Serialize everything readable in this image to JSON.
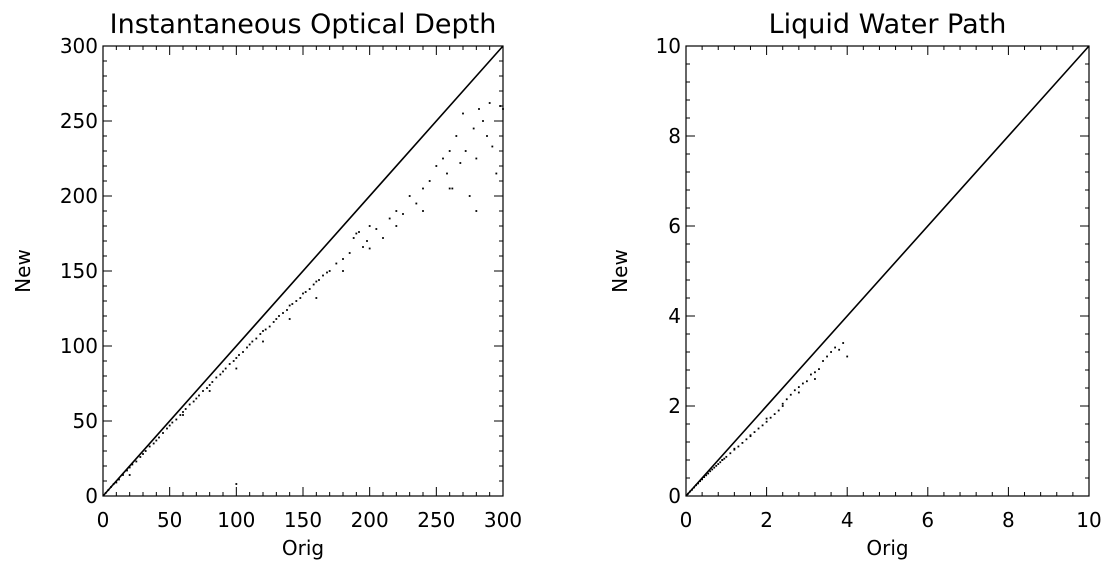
{
  "chart_data": [
    {
      "type": "scatter",
      "title": "Instantaneous Optical Depth",
      "xlabel": "Orig",
      "ylabel": "New",
      "xlim": [
        0,
        300
      ],
      "ylim": [
        0,
        300
      ],
      "xticks": [
        0,
        50,
        100,
        150,
        200,
        250,
        300
      ],
      "yticks": [
        0,
        50,
        100,
        150,
        200,
        250,
        300
      ],
      "xtick_labels": [
        "0",
        "50",
        "100",
        "150",
        "200",
        "250",
        "300"
      ],
      "ytick_labels": [
        "0",
        "50",
        "100",
        "150",
        "200",
        "250",
        "300"
      ],
      "reference_line": {
        "x": [
          0,
          300
        ],
        "y": [
          0,
          300
        ]
      },
      "point_color": "#000000",
      "grid": false,
      "series": [
        {
          "x": [
            2,
            4,
            6,
            8,
            10,
            12,
            15,
            18,
            20,
            22,
            25,
            28,
            30,
            32,
            35,
            38,
            40,
            42,
            45,
            48,
            50,
            52,
            55,
            58,
            60,
            62,
            65,
            68,
            70,
            72,
            75,
            78,
            80,
            82,
            85,
            88,
            90,
            92,
            95,
            98,
            100,
            102,
            105,
            108,
            110,
            112,
            115,
            118,
            120,
            122,
            125,
            128,
            130,
            132,
            135,
            138,
            140,
            142,
            145,
            148,
            150,
            152,
            155,
            158,
            160,
            162,
            165,
            168,
            170,
            175,
            180,
            185,
            188,
            190,
            192,
            195,
            198,
            200,
            205,
            210,
            215,
            220,
            225,
            230,
            235,
            240,
            245,
            250,
            255,
            258,
            260,
            262,
            265,
            268,
            270,
            272,
            275,
            278,
            280,
            282,
            285,
            288,
            290,
            292,
            295,
            298,
            300,
            60,
            80,
            100,
            120,
            140,
            160,
            180,
            200,
            220,
            240,
            260,
            280,
            100,
            20
          ],
          "y": [
            2,
            4,
            6,
            8,
            9,
            11,
            14,
            17,
            19,
            21,
            23,
            26,
            28,
            30,
            33,
            35,
            37,
            39,
            42,
            45,
            47,
            49,
            51,
            54,
            56,
            58,
            61,
            63,
            65,
            67,
            70,
            72,
            74,
            76,
            79,
            81,
            83,
            85,
            88,
            90,
            92,
            94,
            96,
            99,
            101,
            103,
            105,
            108,
            110,
            111,
            113,
            116,
            118,
            120,
            122,
            124,
            127,
            128,
            130,
            132,
            135,
            136,
            138,
            141,
            143,
            144,
            147,
            149,
            150,
            155,
            158,
            162,
            172,
            175,
            176,
            166,
            170,
            180,
            178,
            172,
            185,
            190,
            188,
            200,
            195,
            205,
            210,
            220,
            225,
            215,
            230,
            205,
            240,
            222,
            255,
            230,
            200,
            245,
            190,
            258,
            250,
            240,
            262,
            233,
            215,
            260,
            258,
            54,
            70,
            85,
            103,
            118,
            132,
            150,
            165,
            180,
            190,
            205,
            225,
            8,
            14
          ]
        }
      ]
    },
    {
      "type": "scatter",
      "title": "Liquid Water Path",
      "xlabel": "Orig",
      "ylabel": "New",
      "xlim": [
        0,
        10
      ],
      "ylim": [
        0,
        10
      ],
      "xticks": [
        0,
        2,
        4,
        6,
        8,
        10
      ],
      "yticks": [
        0,
        2,
        4,
        6,
        8,
        10
      ],
      "xtick_labels": [
        "0",
        "2",
        "4",
        "6",
        "8",
        "10"
      ],
      "ytick_labels": [
        "0",
        "2",
        "4",
        "6",
        "8",
        "10"
      ],
      "reference_line": {
        "x": [
          0,
          10
        ],
        "y": [
          0,
          10
        ]
      },
      "point_color": "#000000",
      "grid": false,
      "series": [
        {
          "x": [
            0.05,
            0.1,
            0.15,
            0.2,
            0.25,
            0.3,
            0.35,
            0.4,
            0.45,
            0.5,
            0.55,
            0.6,
            0.65,
            0.7,
            0.75,
            0.8,
            0.85,
            0.9,
            0.95,
            1.0,
            1.1,
            1.2,
            1.3,
            1.4,
            1.5,
            1.6,
            1.7,
            1.8,
            1.9,
            2.0,
            2.1,
            2.2,
            2.3,
            2.4,
            2.5,
            2.6,
            2.7,
            2.8,
            2.9,
            3.0,
            3.1,
            3.2,
            3.3,
            3.4,
            3.5,
            3.6,
            3.7,
            3.8,
            3.9,
            4.0,
            0.9,
            1.2,
            1.6,
            2.0,
            2.4,
            2.8,
            3.2
          ],
          "y": [
            0.05,
            0.1,
            0.14,
            0.19,
            0.24,
            0.28,
            0.33,
            0.37,
            0.42,
            0.46,
            0.5,
            0.55,
            0.59,
            0.63,
            0.67,
            0.71,
            0.75,
            0.8,
            0.83,
            0.87,
            0.95,
            1.03,
            1.1,
            1.18,
            1.26,
            1.33,
            1.42,
            1.5,
            1.57,
            1.65,
            1.74,
            1.82,
            1.9,
            2.0,
            2.15,
            2.25,
            2.35,
            2.42,
            2.5,
            2.55,
            2.7,
            2.75,
            2.82,
            3.0,
            3.1,
            3.2,
            3.3,
            3.25,
            3.4,
            3.1,
            0.8,
            1.05,
            1.35,
            1.72,
            2.05,
            2.3,
            2.6
          ]
        }
      ]
    }
  ]
}
